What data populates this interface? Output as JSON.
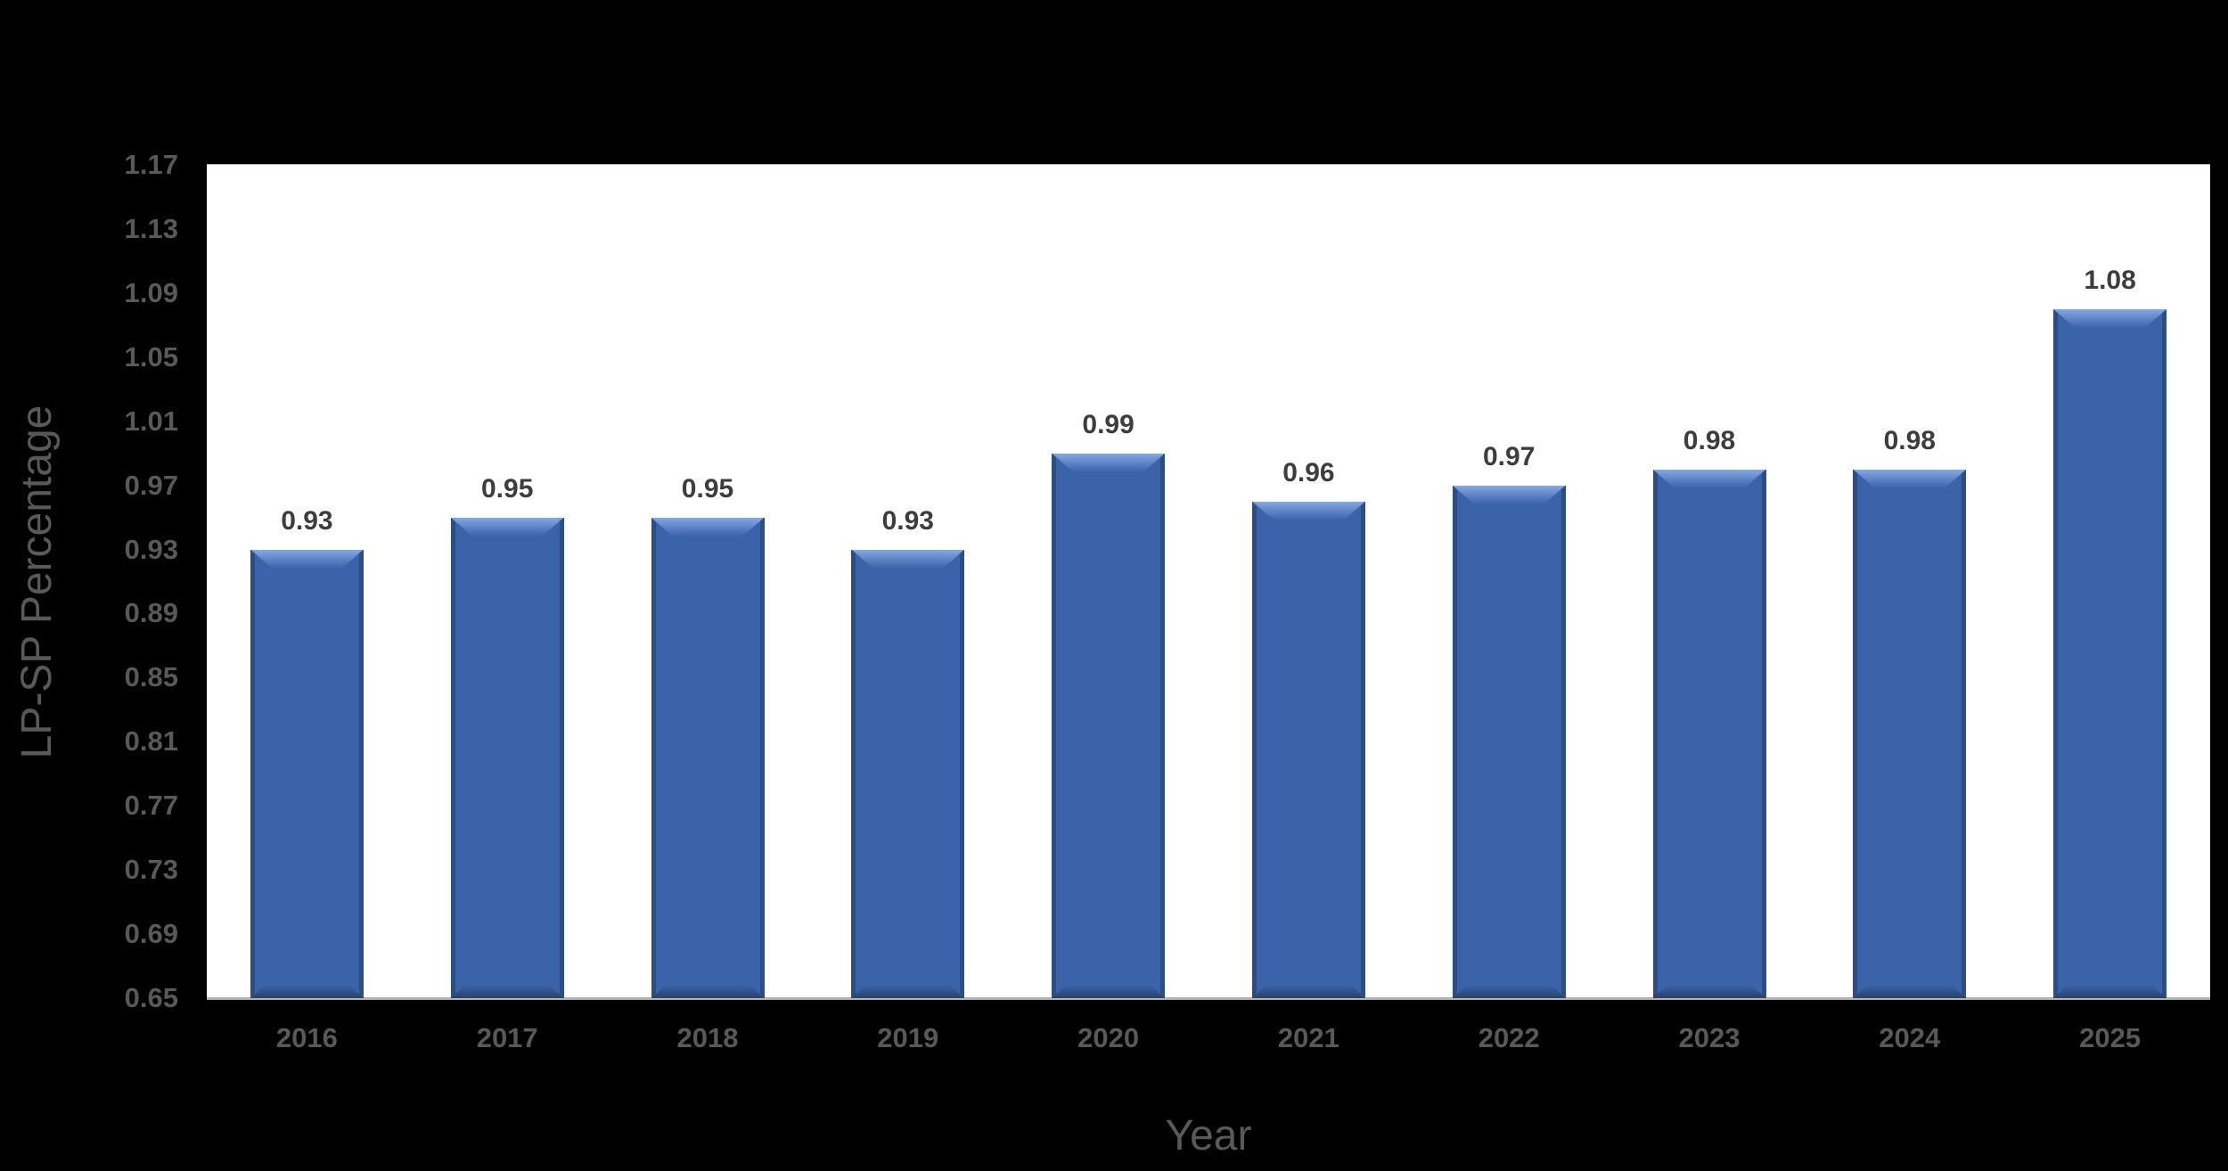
{
  "chart_data": {
    "type": "bar",
    "title": "",
    "xlabel": "Year",
    "ylabel": "LP-SP Percentage",
    "categories": [
      "2016",
      "2017",
      "2018",
      "2019",
      "2020",
      "2021",
      "2022",
      "2023",
      "2024",
      "2025"
    ],
    "values": [
      0.93,
      0.95,
      0.95,
      0.93,
      0.99,
      0.96,
      0.97,
      0.98,
      0.98,
      1.08
    ],
    "labels": [
      "0.93",
      "0.95",
      "0.95",
      "0.93",
      "0.99",
      "0.96",
      "0.97",
      "0.98",
      "0.98",
      "1.08"
    ],
    "ylim": [
      0.65,
      1.17
    ],
    "ytick_step": 0.04,
    "yticks": [
      "1.17",
      "1.13",
      "1.09",
      "1.05",
      "1.01",
      "0.97",
      "0.93",
      "0.89",
      "0.85",
      "0.81",
      "0.77",
      "0.73",
      "0.69",
      "0.65"
    ],
    "grid": true,
    "legend_position": "none",
    "colors": {
      "page_bg": "#000000",
      "plot_bg": "#ffffff",
      "gridline": "#b3b3b3",
      "axis_line": "#b3b3b3",
      "axis_text": "#595959",
      "data_label_text": "#3d3d3d",
      "bar_fill": "#3a63a9",
      "bar_bevel_highlight": "#87a7df",
      "bar_edge_dark": "#2c4e86",
      "bar_bottom_dark": "#26436f"
    }
  }
}
